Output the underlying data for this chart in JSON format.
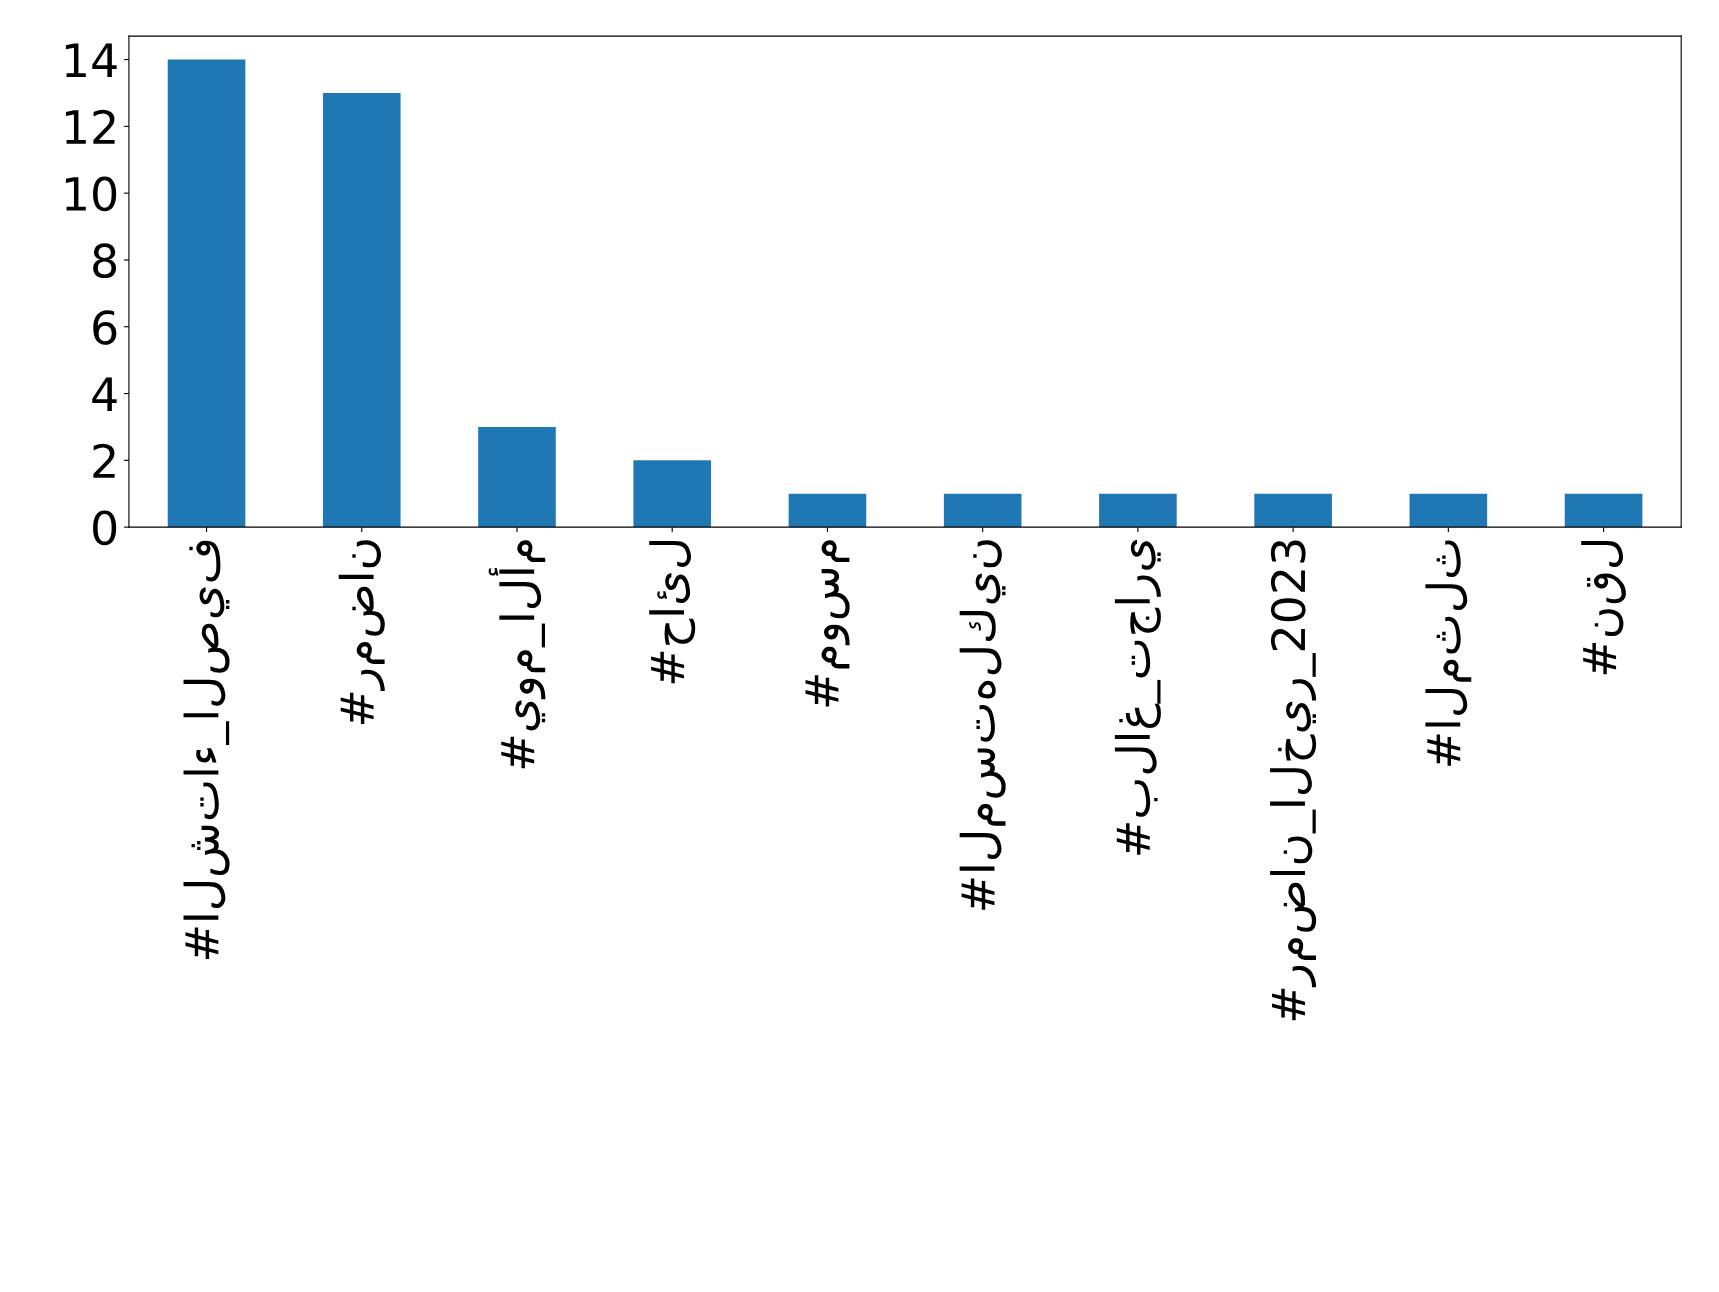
{
  "chart_data": {
    "type": "bar",
    "categories": [
      "#الشتاء_الصيف",
      "#رمضان",
      "#يوم_الأم",
      "#حائل",
      "#موسم",
      "#المستهلكين",
      "#بلاغ_تجاري",
      "#رمضان_الخير_2023",
      "#المثلث",
      "#نقل"
    ],
    "values": [
      14,
      13,
      3,
      2,
      1,
      1,
      1,
      1,
      1,
      1
    ],
    "color": "#1f77b4",
    "ylim": [
      0,
      14.7
    ],
    "yticks": [
      0,
      2,
      4,
      6,
      8,
      10,
      12,
      14
    ],
    "grid": false
  }
}
